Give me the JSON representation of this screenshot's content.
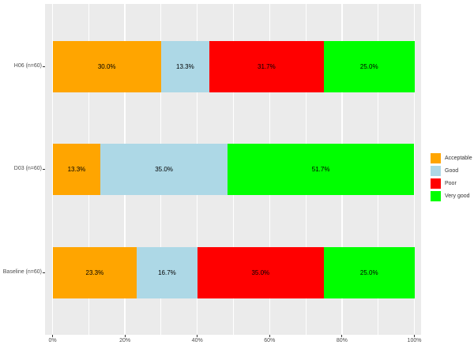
{
  "chart_data": {
    "type": "bar",
    "orientation": "horizontal",
    "stacked": true,
    "unit": "percent",
    "title": "",
    "xlabel": "",
    "ylabel": "",
    "xlim": [
      0,
      100
    ],
    "x_tick_values": [
      0,
      20,
      40,
      60,
      80,
      100
    ],
    "x_tick_labels": [
      "0%",
      "20%",
      "40%",
      "60%",
      "80%",
      "100%"
    ],
    "minor_grid_values": [
      10,
      30,
      50,
      70,
      90
    ],
    "grid": true,
    "categories_top_to_bottom": [
      "H06 (n=60)",
      "D03 (n=60)",
      "Baseline (n=60)"
    ],
    "series": [
      {
        "name": "Acceptable",
        "color": "#FFA500",
        "values": [
          30.0,
          13.3,
          23.3
        ],
        "bar_labels": [
          "30.0%",
          "13.3%",
          "23.3%"
        ]
      },
      {
        "name": "Good",
        "color": "#ADD8E6",
        "values": [
          13.3,
          35.0,
          16.7
        ],
        "bar_labels": [
          "13.3%",
          "35.0%",
          "16.7%"
        ]
      },
      {
        "name": "Poor",
        "color": "#FF0000",
        "values": [
          31.7,
          0.0,
          35.0
        ],
        "bar_labels": [
          "31.7%",
          "",
          "35.0%"
        ]
      },
      {
        "name": "Very good",
        "color": "#00FF00",
        "values": [
          25.0,
          51.7,
          25.0
        ],
        "bar_labels": [
          "25.0%",
          "51.7%",
          "25.0%"
        ]
      }
    ],
    "legend": {
      "position": "right",
      "entries": [
        {
          "label": "Acceptable",
          "color": "#FFA500"
        },
        {
          "label": "Good",
          "color": "#ADD8E6"
        },
        {
          "label": "Poor",
          "color": "#FF0000"
        },
        {
          "label": "Very good",
          "color": "#00FF00"
        }
      ]
    },
    "style": {
      "panel_bg": "#EBEBEB",
      "grid_color": "#FFFFFF",
      "tick_color": "#333333",
      "axis_text_color": "#4D4D4D",
      "bar_label_color": "#000000",
      "background": "#FFFFFF"
    }
  }
}
